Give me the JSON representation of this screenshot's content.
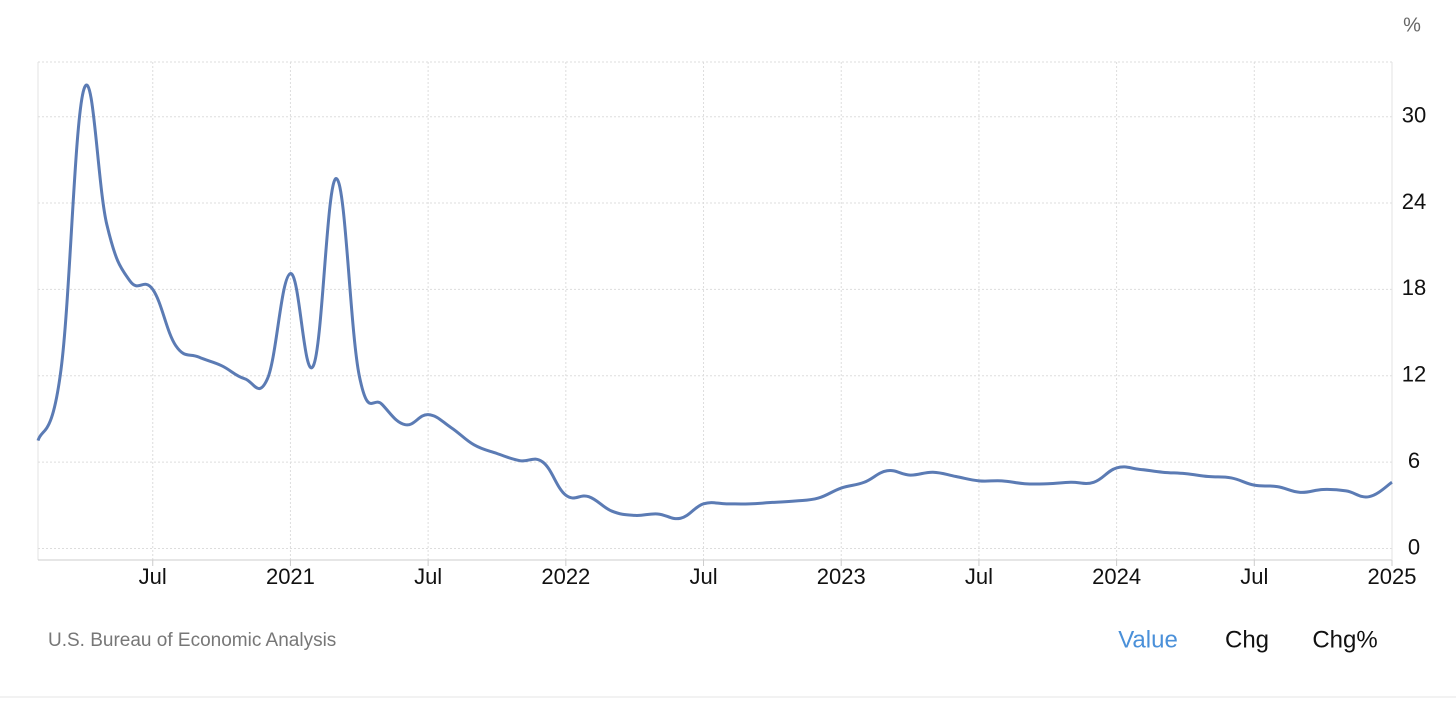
{
  "chart_data": {
    "type": "line",
    "y_unit": "%",
    "source": "U.S. Bureau of Economic Analysis",
    "categories": [
      null,
      null,
      null,
      null,
      null,
      "Jul",
      null,
      null,
      null,
      null,
      null,
      "2021",
      null,
      null,
      null,
      null,
      null,
      "Jul",
      null,
      null,
      null,
      null,
      null,
      "2022",
      null,
      null,
      null,
      null,
      null,
      "Jul",
      null,
      null,
      null,
      null,
      null,
      "2023",
      null,
      null,
      null,
      null,
      null,
      "Jul",
      null,
      null,
      null,
      null,
      null,
      "2024",
      null,
      null,
      null,
      null,
      null,
      "Jul",
      null,
      null,
      null,
      null,
      null,
      "2025"
    ],
    "values": [
      7.5,
      12.4,
      31.9,
      22.5,
      18.6,
      18.0,
      14.1,
      13.3,
      12.7,
      11.8,
      11.8,
      19.1,
      12.7,
      25.7,
      12.0,
      10.0,
      8.6,
      9.3,
      8.4,
      7.2,
      6.6,
      6.1,
      6.0,
      3.7,
      3.6,
      2.6,
      2.3,
      2.4,
      2.1,
      3.1,
      3.1,
      3.1,
      3.2,
      3.3,
      3.5,
      4.2,
      4.6,
      5.4,
      5.1,
      5.3,
      5.0,
      4.7,
      4.7,
      4.5,
      4.5,
      4.6,
      4.6,
      5.6,
      5.5,
      5.3,
      5.2,
      5.0,
      4.9,
      4.4,
      4.3,
      3.9,
      4.1,
      4.0,
      3.6,
      4.6
    ],
    "color": "#5b7bb4",
    "ylim": [
      -0.8,
      33.8
    ],
    "yticks": [
      0,
      6,
      12,
      18,
      24,
      30
    ],
    "grid": true
  },
  "tabs": [
    "Value",
    "Chg",
    "Chg%"
  ],
  "active_tab": 0
}
